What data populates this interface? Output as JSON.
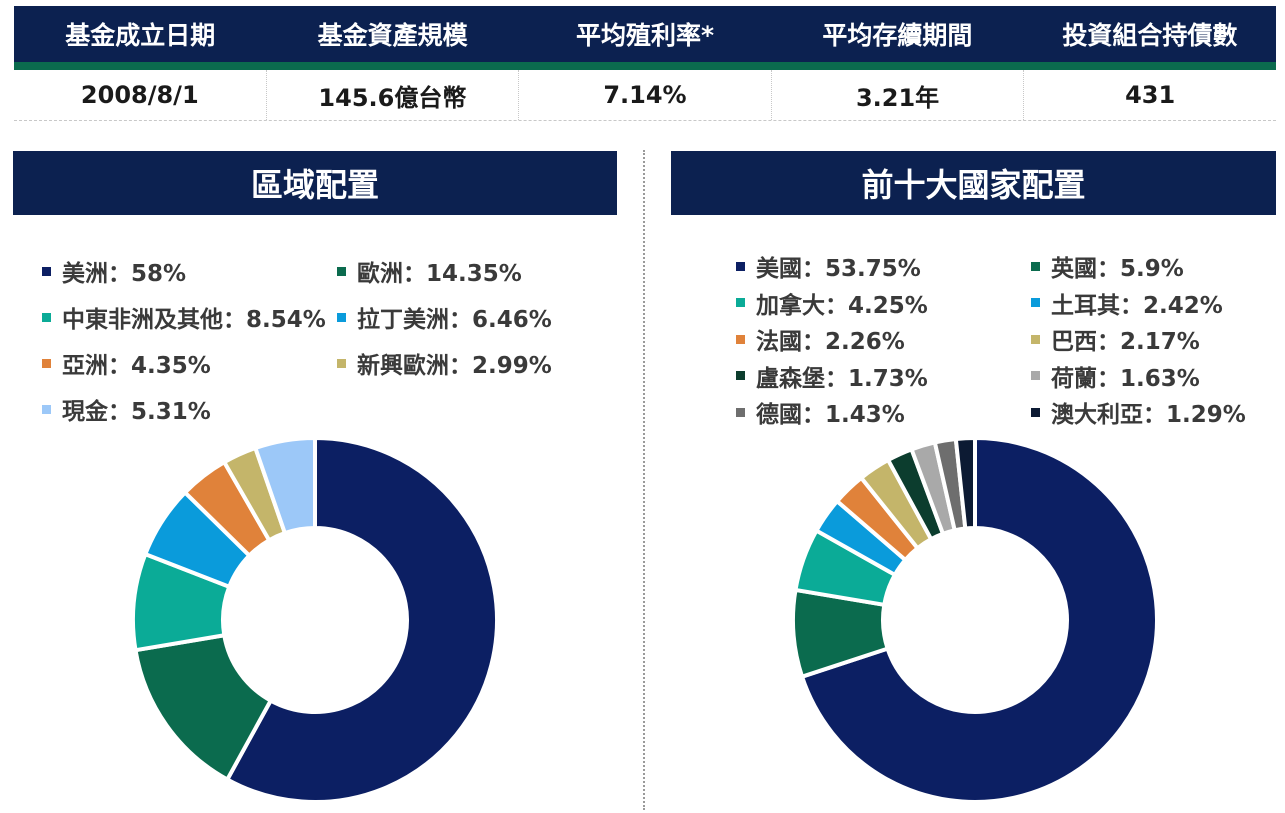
{
  "summary": {
    "headers": [
      "基金成立日期",
      "基金資產規模",
      "平均殖利率*",
      "平均存續期間",
      "投資組合持債數"
    ],
    "values": [
      "2008/8/1",
      "145.6億台幣",
      "7.14%",
      "3.21年",
      "431"
    ]
  },
  "colors": {
    "header_bg": "#0c2150",
    "header_accent": "#0b6b4e"
  },
  "chart_data": [
    {
      "type": "pie",
      "title": "區域配置",
      "donut": true,
      "start_category": "美洲",
      "legend_position": "top",
      "categories": [
        "美洲",
        "歐洲",
        "中東非洲及其他",
        "拉丁美洲",
        "亞洲",
        "新興歐洲",
        "現金"
      ],
      "values": [
        58,
        14.35,
        8.54,
        6.46,
        4.35,
        2.99,
        5.31
      ],
      "labels": [
        "美洲：58%",
        "歐洲：14.35%",
        "中東非洲及其他：8.54%",
        "拉丁美洲：6.46%",
        "亞洲：4.35%",
        "新興歐洲：2.99%",
        "現金：5.31%"
      ],
      "colors": [
        "#0c1f63",
        "#0b6b4e",
        "#0bab97",
        "#0a9bdb",
        "#e0823a",
        "#c4b56a",
        "#9cc8f8"
      ]
    },
    {
      "type": "pie",
      "title": "前十大國家配置",
      "donut": true,
      "legend_position": "top",
      "categories": [
        "美國",
        "英國",
        "加拿大",
        "土耳其",
        "法國",
        "巴西",
        "盧森堡",
        "荷蘭",
        "德國",
        "澳大利亞"
      ],
      "values": [
        53.75,
        5.9,
        4.25,
        2.42,
        2.26,
        2.17,
        1.73,
        1.63,
        1.43,
        1.29
      ],
      "labels": [
        "美國：53.75%",
        "英國：5.9%",
        "加拿大：4.25%",
        "土耳其：2.42%",
        "法國：2.26%",
        "巴西：2.17%",
        "盧森堡：1.73%",
        "荷蘭：1.63%",
        "德國：1.43%",
        "澳大利亞：1.29%"
      ],
      "colors": [
        "#0c1f63",
        "#0b6b4e",
        "#0bab97",
        "#0a9bdb",
        "#e0823a",
        "#c4b56a",
        "#0c3d2e",
        "#a9a9a9",
        "#6e6e6e",
        "#0c1a33"
      ]
    }
  ]
}
